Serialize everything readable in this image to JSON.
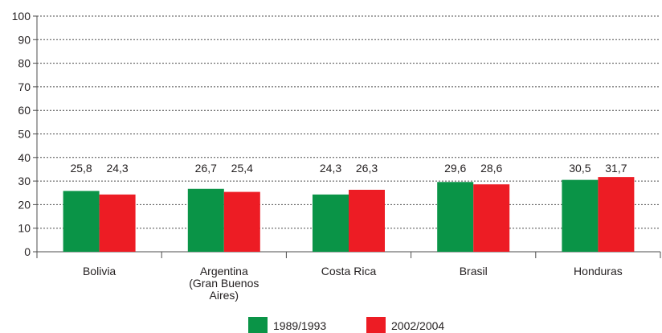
{
  "chart_data": {
    "type": "bar",
    "title": "",
    "xlabel": "",
    "ylabel": "",
    "ylim": [
      0,
      100
    ],
    "yticks": [
      "0",
      "10",
      "20",
      "30",
      "40",
      "50",
      "60",
      "70",
      "80",
      "90",
      "100"
    ],
    "grid": true,
    "legend_position": "bottom-center",
    "categories": [
      [
        "Bolivia"
      ],
      [
        "Argentina",
        "(Gran Buenos",
        "Aires)"
      ],
      [
        "Costa Rica"
      ],
      [
        "Brasil"
      ],
      [
        "Honduras"
      ]
    ],
    "series": [
      {
        "name": "1989/1993",
        "color": "#0a9447",
        "values": [
          25.8,
          26.7,
          24.3,
          29.6,
          30.5
        ],
        "labels": [
          "25,8",
          "26,7",
          "24,3",
          "29,6",
          "30,5"
        ]
      },
      {
        "name": "2002/2004",
        "color": "#ed1c24",
        "values": [
          24.3,
          25.4,
          26.3,
          28.6,
          31.7
        ],
        "labels": [
          "24,3",
          "25,4",
          "26,3",
          "28,6",
          "31,7"
        ]
      }
    ]
  }
}
